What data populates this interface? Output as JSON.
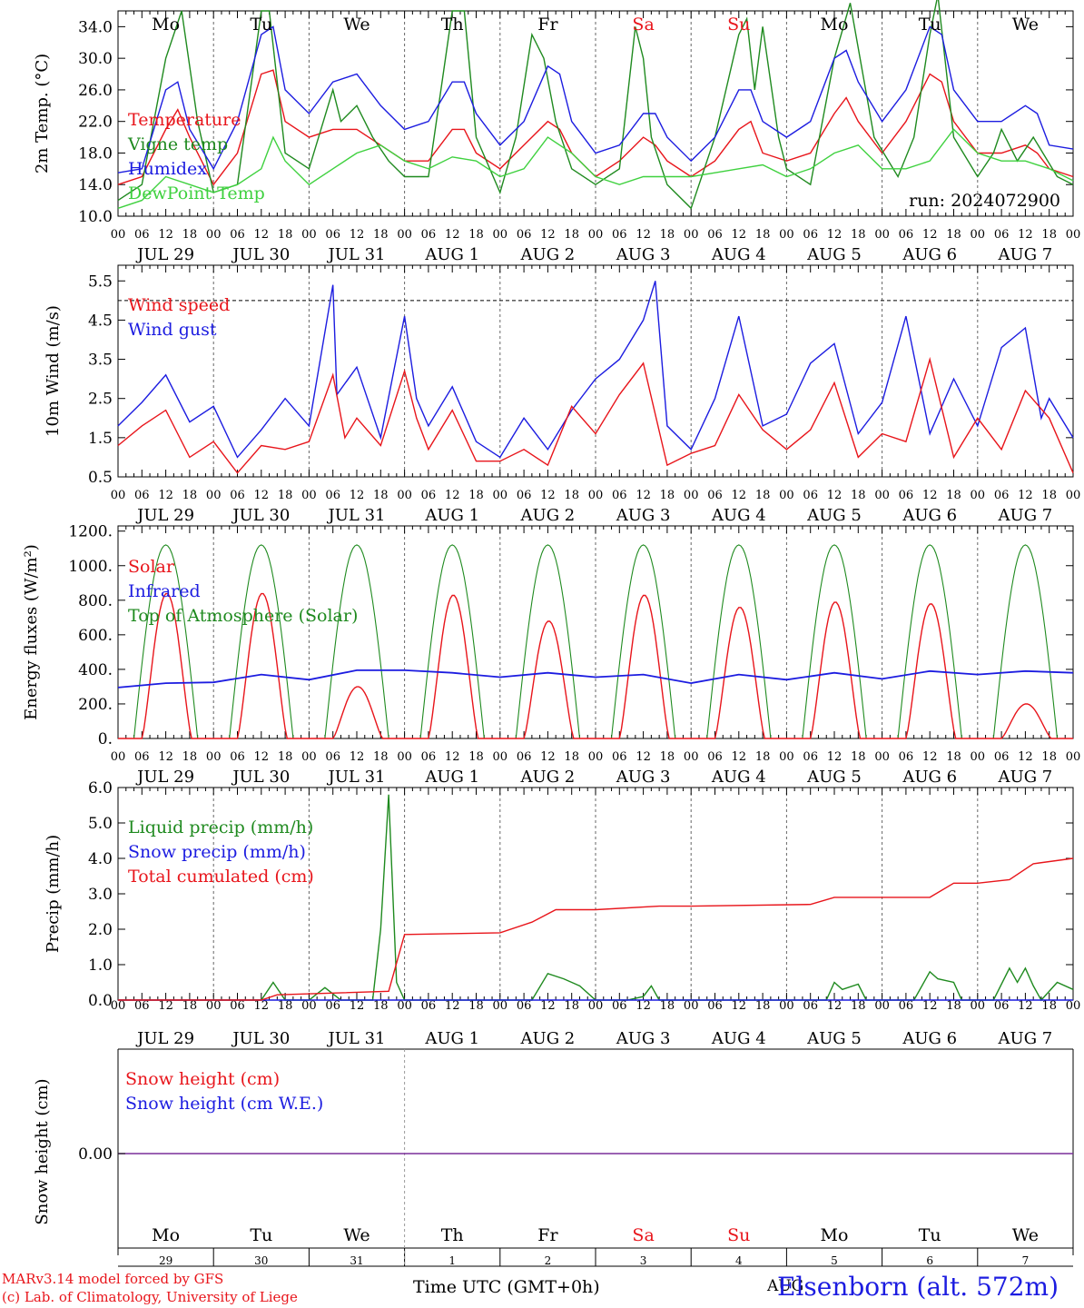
{
  "run_label": "run: 2024072900",
  "weekdays": [
    "Mo",
    "Tu",
    "We",
    "Th",
    "Fr",
    "Sa",
    "Su",
    "Mo",
    "Tu",
    "We"
  ],
  "weekend_indices": [
    5,
    6
  ],
  "date_labels": [
    "JUL 29",
    "JUL 30",
    "JUL 31",
    "AUG  1",
    "AUG  2",
    "AUG  3",
    "AUG  4",
    "AUG  5",
    "AUG  6",
    "AUG  7"
  ],
  "day_numbers": [
    "29",
    "30",
    "31",
    "1",
    "2",
    "3",
    "4",
    "5",
    "6",
    "7"
  ],
  "hour_ticks": [
    "00",
    "06",
    "12",
    "18"
  ],
  "footer": {
    "model": "MARv3.14 model forced by GFS",
    "lab": "(c) Lab. of Climatology, University of Liege",
    "xlabel": "Time UTC (GMT+0h)",
    "month": "AUG",
    "station": "Elsenborn (alt. 572m)"
  },
  "colors": {
    "red": "#e8151b",
    "green": "#1f8a1f",
    "blue": "#1c1ce0",
    "lightgreen": "#3fd13f",
    "purple": "#7a2e9a",
    "grid": "#555555"
  },
  "chart_data": [
    {
      "type": "line",
      "ylabel": "2m Temp. (°C)",
      "ylim": [
        10,
        36
      ],
      "yticks": [
        "10.0",
        "14.0",
        "18.0",
        "22.0",
        "26.0",
        "30.0",
        "34.0"
      ],
      "x_unit": "hours since JUL 29 00 UTC",
      "series": [
        {
          "name": "Temperature",
          "color": "red",
          "x": [
            0,
            6,
            12,
            15,
            18,
            24,
            30,
            36,
            39,
            42,
            48,
            54,
            60,
            66,
            72,
            78,
            84,
            87,
            90,
            96,
            102,
            108,
            111,
            114,
            120,
            126,
            132,
            135,
            138,
            144,
            150,
            156,
            159,
            162,
            168,
            174,
            180,
            183,
            186,
            192,
            198,
            204,
            207,
            210,
            216,
            222,
            228,
            231,
            234,
            240
          ],
          "values": [
            14,
            15,
            21,
            23.5,
            20,
            14,
            18,
            28,
            28.5,
            22,
            20,
            21,
            21,
            19,
            17,
            17,
            21,
            21,
            18,
            16,
            19,
            22,
            21,
            18,
            15,
            17,
            20,
            19,
            17,
            15,
            17,
            21,
            22,
            18,
            17,
            18,
            23,
            25,
            22,
            18,
            22,
            28,
            27,
            22,
            18,
            18,
            19,
            18,
            16,
            15
          ]
        },
        {
          "name": "Vigne temp",
          "color": "green",
          "x": [
            0,
            6,
            12,
            16,
            20,
            24,
            30,
            36,
            38,
            42,
            48,
            54,
            56,
            60,
            64,
            68,
            72,
            78,
            84,
            87,
            90,
            96,
            100,
            104,
            107,
            110,
            114,
            120,
            126,
            130,
            132,
            134,
            138,
            144,
            150,
            156,
            158,
            160,
            162,
            166,
            168,
            174,
            180,
            184,
            190,
            196,
            200,
            204,
            206,
            210,
            216,
            220,
            222,
            226,
            230,
            236,
            240
          ],
          "values": [
            12,
            14,
            30,
            36,
            22,
            13,
            14,
            36,
            36,
            18,
            16,
            26,
            22,
            24,
            20,
            17,
            15,
            15,
            36,
            36,
            20,
            13,
            20,
            33,
            30,
            22,
            16,
            14,
            16,
            34,
            30,
            20,
            14,
            11,
            20,
            33,
            35,
            26,
            34,
            20,
            16,
            14,
            30,
            37,
            20,
            15,
            20,
            33,
            38,
            20,
            15,
            18,
            21,
            17,
            20,
            15,
            14
          ]
        },
        {
          "name": "Humidex",
          "color": "blue",
          "x": [
            0,
            6,
            12,
            15,
            18,
            24,
            30,
            36,
            39,
            42,
            48,
            54,
            60,
            66,
            72,
            78,
            84,
            87,
            90,
            96,
            102,
            108,
            111,
            114,
            120,
            126,
            132,
            135,
            138,
            144,
            150,
            156,
            159,
            162,
            168,
            174,
            180,
            183,
            186,
            192,
            198,
            204,
            207,
            210,
            216,
            222,
            228,
            231,
            234,
            240
          ],
          "values": [
            15.5,
            16,
            26,
            27,
            21,
            16,
            22,
            33,
            34,
            26,
            23,
            27,
            28,
            24,
            21,
            22,
            27,
            27,
            23,
            19,
            22,
            29,
            28,
            22,
            18,
            19,
            23,
            23,
            20,
            17,
            20,
            26,
            26,
            22,
            20,
            22,
            30,
            31,
            27,
            22,
            26,
            34,
            33,
            26,
            22,
            22,
            24,
            23,
            19,
            18.5
          ]
        },
        {
          "name": "DewPoint Temp",
          "color": "lightgreen",
          "x": [
            0,
            6,
            12,
            18,
            24,
            30,
            36,
            39,
            42,
            48,
            54,
            60,
            66,
            72,
            78,
            84,
            90,
            96,
            102,
            108,
            114,
            120,
            126,
            132,
            138,
            144,
            150,
            156,
            162,
            168,
            174,
            180,
            186,
            192,
            198,
            204,
            210,
            216,
            222,
            228,
            234,
            240
          ],
          "values": [
            11,
            12,
            15,
            14,
            13,
            14,
            16,
            20,
            17,
            14,
            16,
            18,
            19,
            17,
            16,
            17.5,
            17,
            15,
            16,
            20,
            18,
            15,
            14,
            15,
            15,
            15,
            15.5,
            16,
            16.5,
            15,
            16,
            18,
            19,
            16,
            16,
            17,
            21,
            18,
            17,
            17,
            16,
            14.5
          ]
        }
      ],
      "annotations": [
        "run: 2024072900"
      ]
    },
    {
      "type": "line",
      "ylabel": "10m Wind (m/s)",
      "ylim": [
        0.5,
        5.9
      ],
      "yticks": [
        "0.5",
        "1.5",
        "2.5",
        "3.5",
        "4.5",
        "5.5"
      ],
      "reference_line": 5,
      "series": [
        {
          "name": "Wind speed",
          "color": "red",
          "x": [
            0,
            6,
            12,
            18,
            24,
            30,
            36,
            42,
            48,
            54,
            57,
            60,
            66,
            72,
            75,
            78,
            84,
            90,
            96,
            102,
            108,
            114,
            120,
            126,
            132,
            138,
            144,
            150,
            156,
            162,
            168,
            174,
            180,
            186,
            192,
            198,
            204,
            210,
            216,
            222,
            228,
            234,
            240
          ],
          "values": [
            1.3,
            1.8,
            2.2,
            1.0,
            1.4,
            0.6,
            1.3,
            1.2,
            1.4,
            3.1,
            1.5,
            2.0,
            1.3,
            3.2,
            2.0,
            1.2,
            2.2,
            0.9,
            0.9,
            1.2,
            0.8,
            2.3,
            1.6,
            2.6,
            3.4,
            0.8,
            1.1,
            1.3,
            2.6,
            1.7,
            1.2,
            1.7,
            2.9,
            1.0,
            1.6,
            1.4,
            3.5,
            1.0,
            2.0,
            1.2,
            2.7,
            2.0,
            0.6
          ]
        },
        {
          "name": "Wind gust",
          "color": "blue",
          "x": [
            0,
            6,
            12,
            18,
            24,
            30,
            36,
            42,
            48,
            54,
            55,
            60,
            66,
            72,
            75,
            78,
            84,
            90,
            96,
            102,
            108,
            114,
            120,
            126,
            132,
            135,
            138,
            144,
            150,
            156,
            162,
            168,
            174,
            180,
            186,
            192,
            198,
            204,
            210,
            216,
            222,
            228,
            232,
            234,
            240
          ],
          "values": [
            1.8,
            2.4,
            3.1,
            1.9,
            2.3,
            1.0,
            1.7,
            2.5,
            1.8,
            5.4,
            2.6,
            3.3,
            1.5,
            4.6,
            2.5,
            1.8,
            2.8,
            1.4,
            1.0,
            2.0,
            1.2,
            2.2,
            3.0,
            3.5,
            4.5,
            5.5,
            1.8,
            1.2,
            2.5,
            4.6,
            1.8,
            2.1,
            3.4,
            3.9,
            1.6,
            2.4,
            4.6,
            1.6,
            3.0,
            1.8,
            3.8,
            4.3,
            2.0,
            2.5,
            1.5
          ]
        }
      ]
    },
    {
      "type": "line",
      "ylabel": "Energy fluxes (W/m²)",
      "ylim": [
        0,
        1230
      ],
      "yticks": [
        "0.",
        "200.",
        "400.",
        "600.",
        "800.",
        "1000.",
        "1200."
      ],
      "solar_peaks": [
        840,
        840,
        300,
        830,
        680,
        830,
        760,
        790,
        780,
        200
      ],
      "series": [
        {
          "name": "Solar",
          "color": "red",
          "values": "daily curves scaled to solar_peaks"
        },
        {
          "name": "Infrared",
          "color": "blue",
          "x": [
            0,
            12,
            24,
            36,
            48,
            60,
            72,
            84,
            96,
            108,
            120,
            132,
            144,
            156,
            168,
            180,
            192,
            204,
            216,
            228,
            240
          ],
          "values": [
            295,
            320,
            325,
            370,
            340,
            395,
            395,
            380,
            355,
            380,
            355,
            370,
            320,
            370,
            340,
            380,
            345,
            390,
            370,
            390,
            380
          ]
        },
        {
          "name": "Top of Atmosphere (Solar)",
          "color": "green",
          "peak": 1120
        }
      ]
    },
    {
      "type": "line",
      "ylabel": "Precip (mm/h)",
      "ylim": [
        0,
        6
      ],
      "yticks": [
        "0.0",
        "1.0",
        "2.0",
        "3.0",
        "4.0",
        "5.0",
        "6.0"
      ],
      "series": [
        {
          "name": "Liquid precip (mm/h)",
          "color": "green",
          "x": [
            0,
            36,
            39,
            42,
            48,
            52,
            56,
            60,
            64,
            66,
            68,
            70,
            72,
            80,
            104,
            108,
            112,
            116,
            120,
            128,
            132,
            134,
            136,
            160,
            178,
            180,
            182,
            186,
            188,
            196,
            200,
            204,
            206,
            210,
            212,
            220,
            224,
            226,
            228,
            230,
            232,
            236,
            240
          ],
          "values": [
            0,
            0,
            0.5,
            0,
            0,
            0.35,
            0,
            0,
            0,
            2.0,
            5.8,
            0.5,
            0,
            0,
            0,
            0.75,
            0.6,
            0.4,
            0,
            0,
            0.1,
            0.4,
            0,
            0,
            0,
            0.5,
            0.3,
            0.45,
            0,
            0,
            0,
            0.8,
            0.6,
            0.5,
            0,
            0,
            0.9,
            0.5,
            0.9,
            0.4,
            0,
            0.5,
            0.3
          ]
        },
        {
          "name": "Snow precip (mm/h)",
          "color": "blue",
          "x": [
            0,
            240
          ],
          "values": [
            0,
            0
          ]
        },
        {
          "name": "Total cumulated (cm)",
          "color": "red",
          "x": [
            0,
            36,
            40,
            68,
            72,
            96,
            104,
            110,
            120,
            136,
            144,
            174,
            180,
            190,
            204,
            210,
            216,
            224,
            230,
            240
          ],
          "values": [
            0,
            0,
            0.15,
            0.25,
            1.85,
            1.9,
            2.2,
            2.55,
            2.55,
            2.65,
            2.65,
            2.7,
            2.9,
            2.9,
            2.9,
            3.3,
            3.3,
            3.4,
            3.85,
            4.0
          ]
        }
      ]
    },
    {
      "type": "line",
      "ylabel": "Snow height (cm)",
      "yticks": [
        "0.00"
      ],
      "series": [
        {
          "name": "Snow height (cm)",
          "color": "red",
          "x": [
            0,
            240
          ],
          "values": [
            0,
            0
          ]
        },
        {
          "name": "Snow height (cm W.E.)",
          "color": "blue",
          "x": [
            0,
            240
          ],
          "values": [
            0,
            0
          ]
        }
      ]
    }
  ]
}
